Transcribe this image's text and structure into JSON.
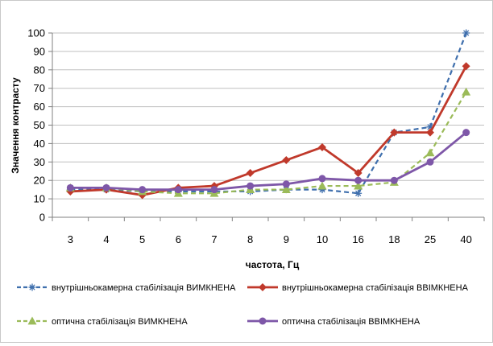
{
  "chart_data": {
    "type": "line",
    "xlabel": "частота, Гц",
    "ylabel": "Значення контрасту",
    "ylim": [
      0,
      100
    ],
    "ystep": 10,
    "grid": "horizontal",
    "legend_position": "bottom",
    "categories": [
      "3",
      "4",
      "5",
      "6",
      "7",
      "8",
      "9",
      "10",
      "16",
      "18",
      "25",
      "40"
    ],
    "series": [
      {
        "name": "внутрішньокамерна стабілізація ВИМКНЕНА",
        "color": "#3f6fad",
        "dash": "dashed",
        "marker": "asterisk",
        "values": [
          15,
          15,
          14,
          14,
          14,
          14,
          15,
          15,
          13,
          46,
          49,
          100
        ]
      },
      {
        "name": "внутрішньокамерна стабілізація ВВІМКНЕНА",
        "color": "#c0392b",
        "dash": "solid",
        "marker": "diamond",
        "values": [
          14,
          15,
          12,
          16,
          17,
          24,
          31,
          38,
          24,
          46,
          46,
          82
        ]
      },
      {
        "name": "оптична стабілізація ВИМКНЕНА",
        "color": "#9bbb59",
        "dash": "dashed",
        "marker": "triangle",
        "values": [
          16,
          16,
          14,
          13,
          13,
          15,
          15,
          17,
          17,
          19,
          35,
          68
        ]
      },
      {
        "name": "оптична стабілізація ВВІМКНЕНА",
        "color": "#7e57a8",
        "dash": "solid",
        "marker": "circle",
        "values": [
          16,
          16,
          15,
          15,
          15,
          17,
          18,
          21,
          20,
          20,
          30,
          46
        ]
      }
    ]
  }
}
